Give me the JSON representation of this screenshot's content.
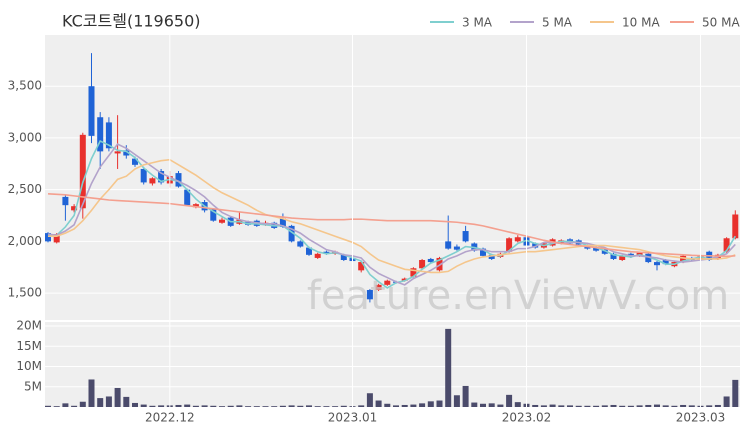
{
  "chart_data": [
    {
      "type": "candlestick",
      "title": "KC코트렐(119650)",
      "watermark": "feature.enViewV.com",
      "up_color": "#e8302c",
      "down_color": "#1f63d6",
      "grid": true,
      "legend": "top-right",
      "ylim": [
        1240,
        3995
      ],
      "yticks": [
        {
          "value": 1500,
          "label": "1,500"
        },
        {
          "value": 2000,
          "label": "2,000"
        },
        {
          "value": 2500,
          "label": "2,500"
        },
        {
          "value": 3000,
          "label": "3,000"
        },
        {
          "value": 3500,
          "label": "3,500"
        }
      ],
      "ohlc": [
        [
          2080,
          2090,
          1990,
          2000
        ],
        [
          1990,
          2080,
          1980,
          2070
        ],
        [
          2430,
          2450,
          2200,
          2350
        ],
        [
          2300,
          2360,
          2280,
          2340
        ],
        [
          2320,
          3050,
          2220,
          3030
        ],
        [
          3500,
          3820,
          2950,
          3020
        ],
        [
          3200,
          3250,
          2700,
          2870
        ],
        [
          3150,
          3200,
          2870,
          2900
        ],
        [
          2850,
          3220,
          2700,
          2870
        ],
        [
          2880,
          2930,
          2800,
          2830
        ],
        [
          2800,
          2820,
          2720,
          2740
        ],
        [
          2700,
          2720,
          2550,
          2570
        ],
        [
          2560,
          2620,
          2540,
          2610
        ],
        [
          2680,
          2700,
          2550,
          2570
        ],
        [
          2560,
          2680,
          2520,
          2630
        ],
        [
          2660,
          2680,
          2520,
          2530
        ],
        [
          2500,
          2510,
          2340,
          2350
        ],
        [
          2330,
          2370,
          2320,
          2360
        ],
        [
          2380,
          2400,
          2280,
          2300
        ],
        [
          2310,
          2320,
          2190,
          2200
        ],
        [
          2180,
          2230,
          2170,
          2210
        ],
        [
          2230,
          2240,
          2140,
          2150
        ],
        [
          2170,
          2280,
          2160,
          2210
        ],
        [
          2190,
          2200,
          2150,
          2160
        ],
        [
          2200,
          2210,
          2140,
          2150
        ],
        [
          2160,
          2200,
          2150,
          2180
        ],
        [
          2180,
          2190,
          2120,
          2130
        ],
        [
          2220,
          2270,
          2130,
          2140
        ],
        [
          2150,
          2160,
          1990,
          2000
        ],
        [
          2000,
          2010,
          1940,
          1950
        ],
        [
          1940,
          1950,
          1860,
          1870
        ],
        [
          1840,
          1890,
          1830,
          1880
        ],
        [
          1900,
          1910,
          1870,
          1880
        ],
        [
          1880,
          1910,
          1870,
          1900
        ],
        [
          1870,
          1880,
          1810,
          1820
        ],
        [
          1840,
          1850,
          1800,
          1810
        ],
        [
          1720,
          1810,
          1700,
          1800
        ],
        [
          1530,
          1540,
          1410,
          1440
        ],
        [
          1530,
          1590,
          1520,
          1580
        ],
        [
          1580,
          1630,
          1570,
          1620
        ],
        [
          1610,
          1620,
          1590,
          1600
        ],
        [
          1620,
          1650,
          1610,
          1640
        ],
        [
          1660,
          1750,
          1650,
          1740
        ],
        [
          1740,
          1830,
          1730,
          1820
        ],
        [
          1830,
          1840,
          1790,
          1800
        ],
        [
          1720,
          1850,
          1710,
          1840
        ],
        [
          2000,
          2250,
          1920,
          1930
        ],
        [
          1950,
          1970,
          1910,
          1920
        ],
        [
          2100,
          2150,
          1990,
          2000
        ],
        [
          1980,
          1990,
          1900,
          1910
        ],
        [
          1930,
          1940,
          1850,
          1860
        ],
        [
          1870,
          1880,
          1820,
          1830
        ],
        [
          1850,
          1890,
          1840,
          1880
        ],
        [
          1900,
          2040,
          1890,
          2030
        ],
        [
          2000,
          2060,
          1990,
          2040
        ],
        [
          2040,
          2050,
          1950,
          1960
        ],
        [
          1980,
          1990,
          1930,
          1940
        ],
        [
          1940,
          1990,
          1930,
          1980
        ],
        [
          1960,
          2030,
          1950,
          2020
        ],
        [
          1980,
          2020,
          1970,
          2010
        ],
        [
          2020,
          2030,
          1970,
          1980
        ],
        [
          2010,
          2020,
          1960,
          1970
        ],
        [
          1960,
          1970,
          1920,
          1930
        ],
        [
          1940,
          1950,
          1900,
          1910
        ],
        [
          1920,
          1930,
          1870,
          1880
        ],
        [
          1880,
          1890,
          1820,
          1830
        ],
        [
          1820,
          1870,
          1810,
          1860
        ],
        [
          1880,
          1890,
          1840,
          1850
        ],
        [
          1860,
          1900,
          1850,
          1890
        ],
        [
          1880,
          1890,
          1790,
          1800
        ],
        [
          1800,
          1810,
          1720,
          1770
        ],
        [
          1820,
          1830,
          1770,
          1780
        ],
        [
          1760,
          1810,
          1750,
          1800
        ],
        [
          1800,
          1870,
          1790,
          1860
        ],
        [
          1840,
          1850,
          1810,
          1820
        ],
        [
          1820,
          1870,
          1810,
          1860
        ],
        [
          1900,
          1910,
          1810,
          1820
        ],
        [
          1830,
          1880,
          1820,
          1870
        ],
        [
          1900,
          2040,
          1890,
          2030
        ],
        [
          2030,
          2300,
          2020,
          2260
        ]
      ],
      "series": [
        {
          "name": "3 MA",
          "color": "#7fcfcf",
          "values": [
            2050,
            2060,
            2140,
            2250,
            2570,
            2800,
            2970,
            2930,
            2880,
            2870,
            2810,
            2710,
            2640,
            2580,
            2600,
            2580,
            2500,
            2410,
            2340,
            2290,
            2240,
            2190,
            2190,
            2170,
            2170,
            2160,
            2150,
            2150,
            2090,
            2030,
            1940,
            1900,
            1880,
            1890,
            1870,
            1840,
            1810,
            1680,
            1610,
            1550,
            1600,
            1620,
            1660,
            1730,
            1790,
            1820,
            1860,
            1900,
            1950,
            1940,
            1920,
            1870,
            1860,
            1910,
            1980,
            2010,
            1980,
            1960,
            1980,
            2000,
            2000,
            1990,
            1960,
            1940,
            1910,
            1870,
            1860,
            1850,
            1870,
            1850,
            1820,
            1780,
            1780,
            1810,
            1830,
            1850,
            1830,
            1850,
            1910,
            2050
          ]
        },
        {
          "name": "5 MA",
          "color": "#b3a3cb",
          "values": [
            2070,
            2060,
            2100,
            2160,
            2360,
            2560,
            2720,
            2830,
            2940,
            2900,
            2840,
            2780,
            2720,
            2660,
            2620,
            2580,
            2540,
            2490,
            2430,
            2350,
            2280,
            2240,
            2210,
            2190,
            2180,
            2170,
            2170,
            2150,
            2120,
            2080,
            2020,
            1970,
            1920,
            1900,
            1870,
            1860,
            1840,
            1750,
            1690,
            1650,
            1610,
            1580,
            1640,
            1680,
            1720,
            1770,
            1830,
            1860,
            1900,
            1920,
            1920,
            1900,
            1900,
            1900,
            1930,
            1930,
            1950,
            1990,
            1990,
            1980,
            1990,
            1990,
            1980,
            1960,
            1940,
            1900,
            1880,
            1860,
            1860,
            1850,
            1840,
            1820,
            1810,
            1800,
            1810,
            1820,
            1830,
            1850,
            1880,
            1970
          ]
        },
        {
          "name": "10 MA",
          "color": "#f5c68c",
          "values": [
            2050,
            2050,
            2080,
            2120,
            2200,
            2300,
            2410,
            2500,
            2600,
            2630,
            2700,
            2740,
            2760,
            2780,
            2790,
            2740,
            2690,
            2640,
            2580,
            2520,
            2470,
            2430,
            2390,
            2350,
            2300,
            2260,
            2240,
            2220,
            2190,
            2170,
            2140,
            2110,
            2080,
            2050,
            2020,
            1990,
            1950,
            1880,
            1820,
            1790,
            1760,
            1730,
            1720,
            1710,
            1700,
            1700,
            1710,
            1760,
            1800,
            1830,
            1850,
            1860,
            1870,
            1880,
            1890,
            1900,
            1900,
            1910,
            1920,
            1930,
            1940,
            1950,
            1960,
            1960,
            1960,
            1950,
            1940,
            1930,
            1920,
            1900,
            1880,
            1860,
            1850,
            1840,
            1830,
            1830,
            1830,
            1830,
            1840,
            1870
          ]
        },
        {
          "name": "50 MA",
          "color": "#f4a08f",
          "values": [
            2460,
            2455,
            2450,
            2440,
            2430,
            2420,
            2410,
            2400,
            2395,
            2390,
            2385,
            2380,
            2375,
            2370,
            2365,
            2355,
            2345,
            2335,
            2325,
            2315,
            2305,
            2295,
            2285,
            2275,
            2265,
            2255,
            2245,
            2235,
            2225,
            2220,
            2215,
            2210,
            2210,
            2210,
            2210,
            2215,
            2215,
            2210,
            2205,
            2200,
            2200,
            2200,
            2200,
            2200,
            2200,
            2195,
            2190,
            2185,
            2175,
            2165,
            2150,
            2130,
            2110,
            2090,
            2070,
            2050,
            2030,
            2010,
            1995,
            1980,
            1970,
            1960,
            1950,
            1940,
            1930,
            1920,
            1910,
            1900,
            1895,
            1890,
            1885,
            1880,
            1875,
            1870,
            1865,
            1862,
            1860,
            1858,
            1856,
            1860
          ]
        }
      ]
    },
    {
      "type": "bar",
      "color": "#4b4b6b",
      "grid": true,
      "ylim": [
        0,
        21000000
      ],
      "yticks": [
        {
          "value": 5000000,
          "label": "5M"
        },
        {
          "value": 10000000,
          "label": "10M"
        },
        {
          "value": 15000000,
          "label": "15M"
        },
        {
          "value": 20000000,
          "label": "20M"
        }
      ],
      "categories": [
        null,
        null,
        null,
        null,
        null,
        null,
        null,
        null,
        null,
        null,
        null,
        null,
        null,
        null,
        "2022.12",
        null,
        null,
        null,
        null,
        null,
        null,
        null,
        null,
        null,
        null,
        null,
        null,
        null,
        null,
        null,
        null,
        null,
        null,
        null,
        null,
        "2023.01",
        null,
        null,
        null,
        null,
        null,
        null,
        null,
        null,
        null,
        null,
        null,
        null,
        null,
        null,
        null,
        null,
        null,
        null,
        null,
        "2023.02",
        null,
        null,
        null,
        null,
        null,
        null,
        null,
        null,
        null,
        null,
        null,
        null,
        null,
        null,
        null,
        null,
        null,
        null,
        null,
        "2023.03",
        null,
        null,
        null,
        null
      ],
      "values": [
        300000,
        200000,
        900000,
        300000,
        1300000,
        6800000,
        2200000,
        2600000,
        4700000,
        2500000,
        1000000,
        600000,
        300000,
        400000,
        400000,
        500000,
        600000,
        300000,
        400000,
        300000,
        200000,
        300000,
        400000,
        200000,
        200000,
        200000,
        200000,
        300000,
        400000,
        300000,
        400000,
        200000,
        200000,
        200000,
        300000,
        200000,
        400000,
        3400000,
        1600000,
        800000,
        400000,
        500000,
        600000,
        900000,
        1400000,
        1600000,
        19300000,
        2900000,
        5200000,
        1100000,
        800000,
        900000,
        600000,
        3000000,
        1200000,
        800000,
        500000,
        400000,
        600000,
        400000,
        400000,
        300000,
        300000,
        300000,
        400000,
        500000,
        300000,
        300000,
        400000,
        500000,
        600000,
        400000,
        300000,
        500000,
        400000,
        300000,
        400000,
        500000,
        2600000,
        6700000
      ]
    }
  ]
}
